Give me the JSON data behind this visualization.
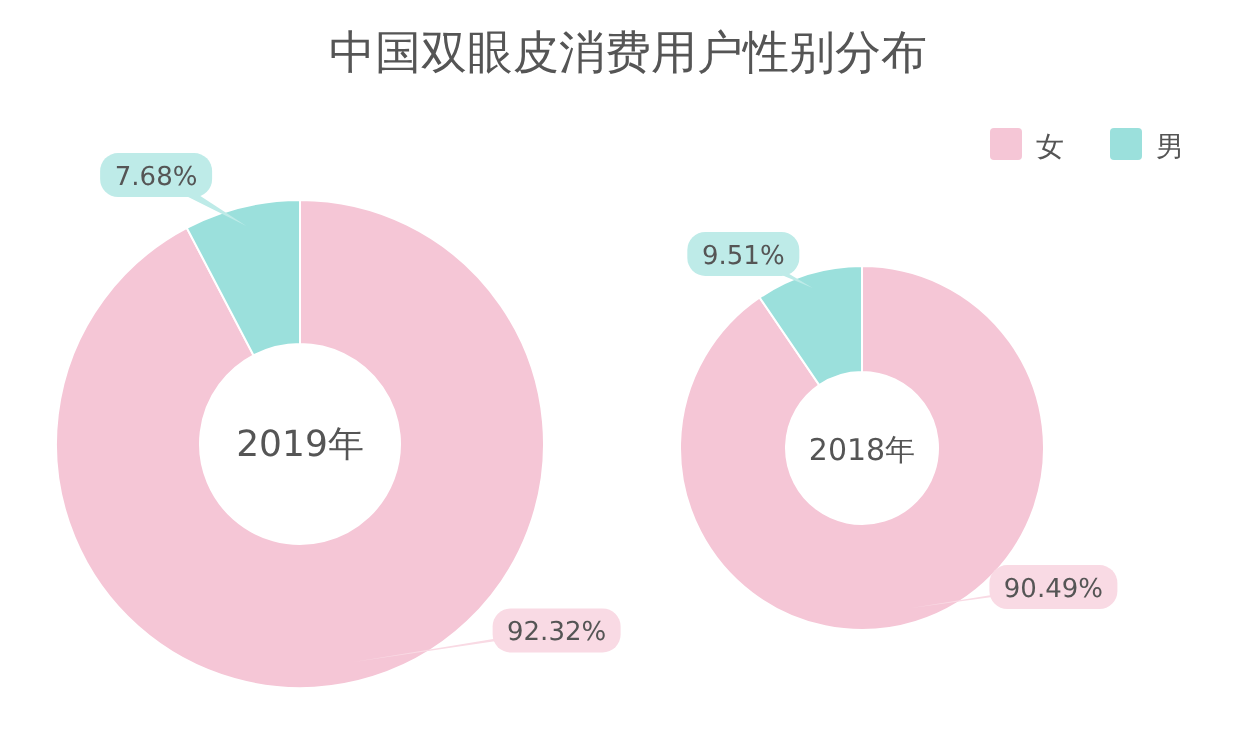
{
  "chart_data": [
    {
      "type": "donut",
      "title": "中国双眼皮消费用户性别分布",
      "categories": [
        "女",
        "男"
      ],
      "values": [
        92.32,
        7.68
      ],
      "colors": [
        "#f5c6d6",
        "#9be0dc"
      ],
      "value_labels": [
        "92.32%",
        "7.68%"
      ],
      "annotations": [
        "2019年"
      ],
      "legend": "top right"
    },
    {
      "type": "donut",
      "categories": [
        null,
        null
      ],
      "values": [
        90.49,
        9.51
      ],
      "colors": [
        "#f5c6d6",
        "#9be0dc"
      ],
      "value_labels": [
        "90.49%",
        "9.51%"
      ],
      "annotations": [
        "2018年"
      ]
    }
  ]
}
